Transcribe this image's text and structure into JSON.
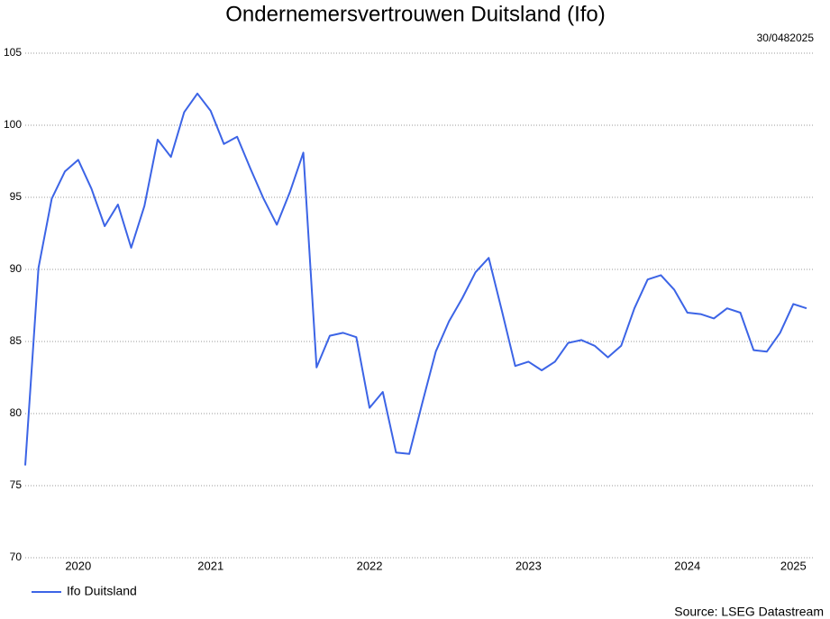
{
  "chart_data": {
    "type": "line",
    "title": "Ondernemersvertrouwen Duitsland (Ifo)",
    "date": "30/0482025",
    "source": "Source: LSEG Datastream",
    "categories": [
      null,
      null,
      null,
      null,
      "2020",
      null,
      null,
      null,
      null,
      null,
      null,
      null,
      null,
      null,
      "2021",
      null,
      null,
      null,
      null,
      null,
      null,
      null,
      null,
      null,
      null,
      null,
      "2022",
      null,
      null,
      null,
      null,
      null,
      null,
      null,
      null,
      null,
      null,
      null,
      "2023",
      null,
      null,
      null,
      null,
      null,
      null,
      null,
      null,
      null,
      null,
      null,
      "2024",
      null,
      null,
      null,
      null,
      null,
      null,
      null,
      "2025",
      null
    ],
    "series": [
      {
        "name": "Ifo Duitsland",
        "color": "#3c64e6",
        "values": [
          76.4,
          90.1,
          94.9,
          96.8,
          97.6,
          95.6,
          93.0,
          94.5,
          91.5,
          94.4,
          99.0,
          97.8,
          100.9,
          102.2,
          101.0,
          98.7,
          99.2,
          97.0,
          94.9,
          93.1,
          95.4,
          98.1,
          83.2,
          85.4,
          85.6,
          85.3,
          80.4,
          81.5,
          77.3,
          77.2,
          80.8,
          84.3,
          86.4,
          88.0,
          89.8,
          90.8,
          87.1,
          83.3,
          83.6,
          83.0,
          83.6,
          84.9,
          85.1,
          84.7,
          83.9,
          84.7,
          87.3,
          89.3,
          89.6,
          88.6,
          87.0,
          86.9,
          86.6,
          87.3,
          87.0,
          84.4,
          84.3,
          85.6,
          87.6,
          87.3
        ]
      }
    ],
    "ylim": [
      70,
      105
    ],
    "yticks": [
      70,
      75,
      80,
      85,
      90,
      95,
      100,
      105
    ],
    "grid": true
  }
}
